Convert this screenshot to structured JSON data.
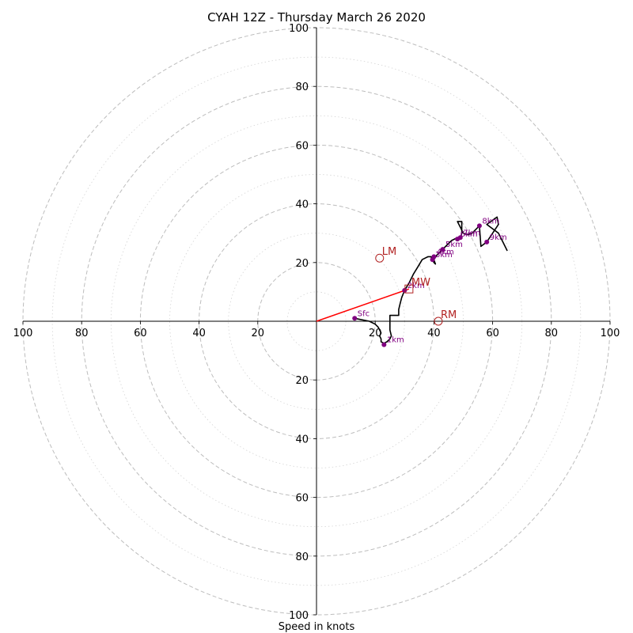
{
  "chart_data": {
    "type": "hodograph",
    "title": "CYAH 12Z - Thursday March 26 2020",
    "xlabel": "Speed in knots",
    "range": 100,
    "grid": "on",
    "tick_labels": [
      "100",
      "80",
      "60",
      "40",
      "20",
      "20",
      "40",
      "60",
      "80",
      "100",
      "100",
      "80",
      "60",
      "40",
      "20",
      "20",
      "40",
      "60",
      "80",
      "100"
    ],
    "colors": {
      "trace": "#000000",
      "height_marker": "#800080",
      "motion": "#b22222",
      "mean_wind_vector": "#ff0000",
      "grid": "#bdbdbd",
      "axes": "#000000"
    },
    "trace": [
      [
        13,
        1
      ],
      [
        18,
        0
      ],
      [
        20,
        -1
      ],
      [
        21,
        -2
      ],
      [
        21.5,
        -3
      ],
      [
        22,
        -4
      ],
      [
        21.5,
        -5
      ],
      [
        22,
        -6
      ],
      [
        22,
        -7
      ],
      [
        23,
        -7.5
      ],
      [
        24,
        -7
      ],
      [
        25,
        -6
      ],
      [
        25.5,
        -5
      ],
      [
        25,
        -3
      ],
      [
        25,
        -1
      ],
      [
        25,
        2
      ],
      [
        28,
        2
      ],
      [
        28,
        4
      ],
      [
        28.5,
        6
      ],
      [
        29,
        8
      ],
      [
        30,
        10.5
      ],
      [
        31.5,
        13
      ],
      [
        33,
        16
      ],
      [
        34.5,
        18.5
      ],
      [
        36,
        21
      ],
      [
        37,
        21.5
      ],
      [
        38,
        22
      ],
      [
        39,
        22
      ],
      [
        39.5,
        21
      ],
      [
        40,
        20
      ],
      [
        40.5,
        19.5
      ],
      [
        40,
        21
      ],
      [
        41,
        22.5
      ],
      [
        43,
        24.5
      ],
      [
        44.5,
        26
      ],
      [
        46,
        27.5
      ],
      [
        48,
        28.5
      ],
      [
        49,
        28
      ],
      [
        49.5,
        30
      ],
      [
        49.5,
        34
      ],
      [
        48,
        34
      ],
      [
        50,
        30
      ],
      [
        51.5,
        29.5
      ],
      [
        53,
        30
      ],
      [
        55.5,
        32.5
      ],
      [
        56,
        25.5
      ],
      [
        58,
        27
      ],
      [
        62,
        33
      ],
      [
        61.5,
        35.5
      ],
      [
        58,
        33
      ],
      [
        62,
        30
      ],
      [
        63,
        28
      ],
      [
        65,
        24
      ]
    ],
    "height_markers": [
      {
        "label": "Sfc",
        "x": 13,
        "y": 1
      },
      {
        "label": "1km",
        "x": 23,
        "y": -8
      },
      {
        "label": "2km",
        "x": 30,
        "y": 10.5
      },
      {
        "label": "3km",
        "x": 39.5,
        "y": 21
      },
      {
        "label": "4km",
        "x": 40,
        "y": 22
      },
      {
        "label": "5km",
        "x": 43,
        "y": 24.5
      },
      {
        "label": "6km",
        "x": 48,
        "y": 28
      },
      {
        "label": "7km",
        "x": 49,
        "y": 28.5
      },
      {
        "label": "8km",
        "x": 55.5,
        "y": 32.5
      },
      {
        "label": "9km",
        "x": 58,
        "y": 27
      }
    ],
    "storm_motion": [
      {
        "label": "LM",
        "x": 21.5,
        "y": 21.5,
        "marker": "circle"
      },
      {
        "label": "MW",
        "x": 31.5,
        "y": 11,
        "marker": "square"
      },
      {
        "label": "RM",
        "x": 41.5,
        "y": 0,
        "marker": "circle"
      }
    ],
    "mean_wind_vector": {
      "x": 31.5,
      "y": 11
    }
  }
}
